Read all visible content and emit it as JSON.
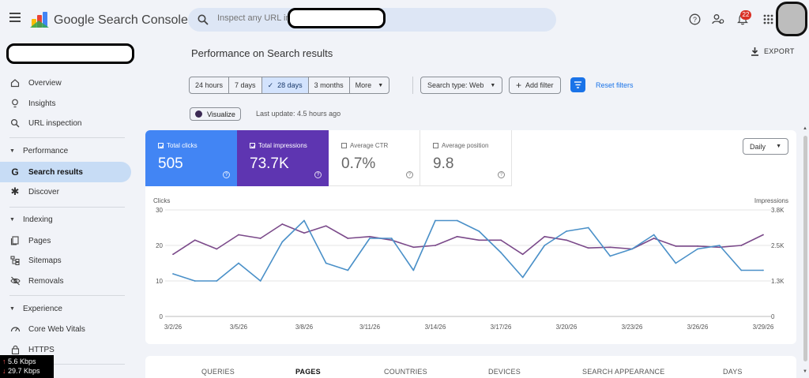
{
  "app": {
    "title": "Google Search Console"
  },
  "search": {
    "placeholder": "Inspect any URL in"
  },
  "header": {
    "notification_count": "22"
  },
  "sidebar": {
    "items": [
      {
        "label": "Overview",
        "icon": "home-icon"
      },
      {
        "label": "Insights",
        "icon": "lightbulb-icon"
      },
      {
        "label": "URL inspection",
        "icon": "search-icon"
      }
    ],
    "sections": [
      {
        "title": "Performance",
        "items": [
          {
            "label": "Search results",
            "icon": "google-g-icon",
            "active": true
          },
          {
            "label": "Discover",
            "icon": "asterisk-icon"
          }
        ]
      },
      {
        "title": "Indexing",
        "items": [
          {
            "label": "Pages",
            "icon": "pages-icon"
          },
          {
            "label": "Sitemaps",
            "icon": "sitemap-icon"
          },
          {
            "label": "Removals",
            "icon": "eye-off-icon"
          }
        ]
      },
      {
        "title": "Experience",
        "items": [
          {
            "label": "Core Web Vitals",
            "icon": "gauge-icon"
          },
          {
            "label": "HTTPS",
            "icon": "lock-icon"
          }
        ]
      }
    ]
  },
  "network": {
    "up": "5.6 Kbps",
    "down": "29.7 Kbps"
  },
  "main": {
    "title": "Performance on Search results",
    "export_label": "EXPORT",
    "ranges": [
      "24 hours",
      "7 days",
      "28 days",
      "3 months",
      "More"
    ],
    "selected_range": "28 days",
    "search_type": "Search type: Web",
    "add_filter": "Add filter",
    "reset_filters": "Reset filters",
    "visualize": "Visualize",
    "last_update": "Last update: 4.5 hours ago",
    "granularity": "Daily",
    "metrics": {
      "clicks": {
        "label": "Total clicks",
        "value": "505",
        "checked": true,
        "color": "#4285f4"
      },
      "impressions": {
        "label": "Total impressions",
        "value": "73.7K",
        "checked": true,
        "color": "#5e35b1"
      },
      "ctr": {
        "label": "Average CTR",
        "value": "0.7%",
        "checked": false
      },
      "position": {
        "label": "Average position",
        "value": "9.8",
        "checked": false
      }
    },
    "tabs": [
      "QUERIES",
      "PAGES",
      "COUNTRIES",
      "DEVICES",
      "SEARCH APPEARANCE",
      "DAYS"
    ],
    "selected_tab": "PAGES"
  },
  "chart_data": {
    "type": "line",
    "left_axis_label": "Clicks",
    "right_axis_label": "Impressions",
    "left_ticks": [
      "30",
      "20",
      "10",
      "0"
    ],
    "right_ticks": [
      "3.8K",
      "2.5K",
      "1.3K",
      "0"
    ],
    "ylim_left": [
      0,
      30
    ],
    "ylim_right": [
      0,
      3800
    ],
    "x_tick_labels": [
      "3/2/26",
      "3/5/26",
      "3/8/26",
      "3/11/26",
      "3/14/26",
      "3/17/26",
      "3/20/26",
      "3/23/26",
      "3/26/26",
      "3/29/26"
    ],
    "x": [
      "3/2/26",
      "3/3/26",
      "3/4/26",
      "3/5/26",
      "3/6/26",
      "3/7/26",
      "3/8/26",
      "3/9/26",
      "3/10/26",
      "3/11/26",
      "3/12/26",
      "3/13/26",
      "3/14/26",
      "3/15/26",
      "3/16/26",
      "3/17/26",
      "3/18/26",
      "3/19/26",
      "3/20/26",
      "3/21/26",
      "3/22/26",
      "3/23/26",
      "3/24/26",
      "3/25/26",
      "3/26/26",
      "3/27/26",
      "3/28/26",
      "3/29/26"
    ],
    "series": [
      {
        "name": "Total clicks",
        "axis": "left",
        "color": "#4a90c8",
        "values": [
          12,
          10,
          10,
          15,
          10,
          21,
          27,
          15,
          13,
          22,
          22,
          13,
          27,
          27,
          24,
          18,
          11,
          20,
          24,
          25,
          17,
          19,
          23,
          15,
          19,
          20,
          13,
          13
        ]
      },
      {
        "name": "Total impressions",
        "axis": "left",
        "color": "#7b4a8a",
        "values": [
          17.5,
          21.5,
          19,
          23,
          22,
          26,
          23.5,
          25.5,
          22,
          22.5,
          21.5,
          19.5,
          20,
          22.5,
          21.5,
          21.5,
          17.5,
          22.5,
          21.5,
          19.3,
          19.5,
          19,
          22,
          19.8,
          19.8,
          19.5,
          20,
          23
        ]
      }
    ]
  }
}
